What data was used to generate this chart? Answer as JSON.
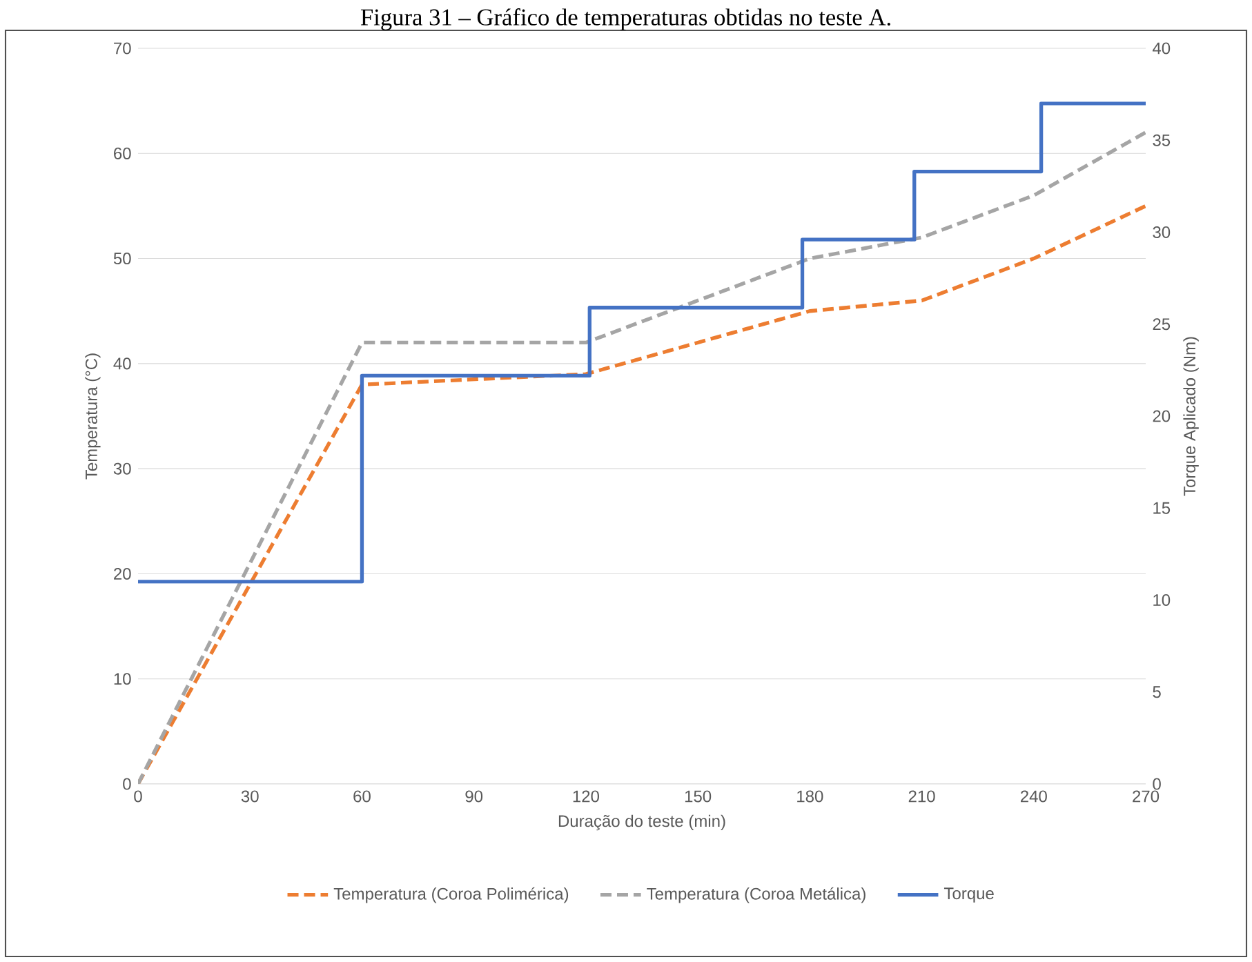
{
  "chart_data": {
    "type": "line",
    "title": "Figura 31 – Gráfico de temperaturas obtidas no teste A.",
    "xlabel": "Duração do teste (min)",
    "ylabel": "Temperatura (°C)",
    "y2label": "Torque Aplicado (Nm)",
    "x": [
      0,
      60,
      120,
      180,
      210,
      240,
      270
    ],
    "series": [
      {
        "name": "Temperatura (Coroa Polimérica)",
        "color": "#ed7d31",
        "line_style": "dashed",
        "values": [
          0,
          38,
          39,
          45,
          46,
          50,
          55
        ]
      },
      {
        "name": "Temperatura (Coroa Metálica)",
        "color": "#a5a5a5",
        "line_style": "dashed",
        "values": [
          0,
          42,
          42,
          50,
          52,
          56,
          62
        ]
      },
      {
        "name": "Torque",
        "type": "step",
        "axis": "y2",
        "color": "#4472c4",
        "line_style": "solid",
        "x": [
          0,
          60,
          121,
          178,
          208,
          242,
          270
        ],
        "values": [
          11,
          22.2,
          25.9,
          29.6,
          33.3,
          37,
          37
        ]
      }
    ],
    "xlim": [
      0,
      270
    ],
    "xticks": [
      0,
      30,
      60,
      90,
      120,
      150,
      180,
      210,
      240,
      270
    ],
    "ylim": [
      0,
      70
    ],
    "yticks": [
      0,
      10,
      20,
      30,
      40,
      50,
      60,
      70
    ],
    "y2lim": [
      0,
      40
    ],
    "y2ticks": [
      0,
      5,
      10,
      15,
      20,
      25,
      30,
      35,
      40
    ],
    "grid": "y",
    "legend": "bottom",
    "marker": "none"
  }
}
